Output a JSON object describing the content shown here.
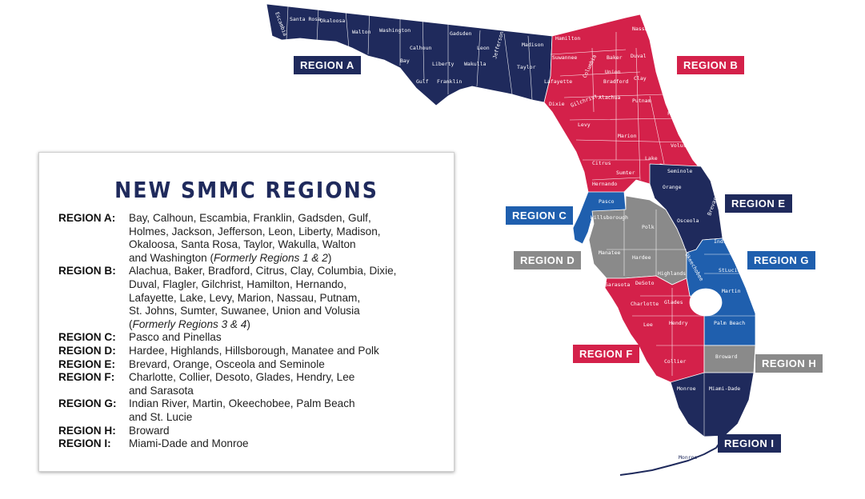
{
  "legend": {
    "title": "NEW SMMC REGIONS",
    "rows": [
      {
        "label": "REGION A:",
        "lines": [
          "Bay, Calhoun, Escambia, Franklin, Gadsden, Gulf,",
          "Holmes, Jackson, Jefferson, Leon, Liberty, Madison,",
          "Okaloosa, Santa Rosa, Taylor, Wakulla, Walton",
          "and Washington (Formerly Regions 1 & 2)"
        ]
      },
      {
        "label": "REGION B:",
        "lines": [
          "Alachua, Baker, Bradford, Citrus, Clay, Columbia, Dixie,",
          "Duval, Flagler, Gilchrist, Hamilton, Hernando,",
          "Lafayette, Lake, Levy, Marion, Nassau, Putnam,",
          "St. Johns, Sumter, Suwanee, Union and Volusia",
          "(Formerly Regions 3 & 4)"
        ]
      },
      {
        "label": "REGION C:",
        "lines": [
          "Pasco and Pinellas"
        ]
      },
      {
        "label": "REGION D:",
        "lines": [
          "Hardee, Highlands, Hillsborough, Manatee and Polk"
        ]
      },
      {
        "label": "REGION E:",
        "lines": [
          "Brevard, Orange, Osceola and Seminole"
        ]
      },
      {
        "label": "REGION F:",
        "lines": [
          "Charlotte, Collier, Desoto, Glades, Hendry, Lee",
          "and Sarasota"
        ]
      },
      {
        "label": "REGION G:",
        "lines": [
          "Indian River, Martin, Okeechobee, Palm Beach",
          "and St. Lucie"
        ]
      },
      {
        "label": "REGION H:",
        "lines": [
          "Broward"
        ]
      },
      {
        "label": "REGION I:",
        "lines": [
          "Miami-Dade and Monroe"
        ]
      }
    ]
  },
  "colors": {
    "region_a": "#1f2a5c",
    "region_b": "#d4214a",
    "region_c": "#1f5fae",
    "region_d": "#8a8a8a",
    "region_e": "#1f2a5c",
    "region_f": "#d4214a",
    "region_g": "#1f5fae",
    "region_h": "#8a8a8a",
    "region_i": "#1f2a5c"
  },
  "tags": {
    "a": "REGION A",
    "b": "REGION B",
    "c": "REGION C",
    "d": "REGION D",
    "e": "REGION E",
    "f": "REGION F",
    "g": "REGION G",
    "h": "REGION H",
    "i": "REGION I"
  },
  "counties": {
    "escambia": "Escambia",
    "santa_rosa": "Santa Rosa",
    "okaloosa": "Okaloosa",
    "walton": "Walton",
    "holmes": "Holmes",
    "washington": "Washington",
    "jackson": "Jackson",
    "bay": "Bay",
    "calhoun": "Calhoun",
    "gulf": "Gulf",
    "liberty": "Liberty",
    "gadsden": "Gadsden",
    "leon": "Leon",
    "wakulla": "Wakulla",
    "franklin": "Franklin",
    "jefferson": "Jefferson",
    "madison": "Madison",
    "taylor": "Taylor",
    "hamilton": "Hamilton",
    "suwannee": "Suwannee",
    "columbia": "Columbia",
    "baker": "Baker",
    "nassau": "Nassau",
    "duval": "Duval",
    "union": "Union",
    "bradford": "Bradford",
    "clay": "Clay",
    "st_johns": "St.Johns",
    "lafayette": "Lafayette",
    "gilchrist": "Gilchrist",
    "alachua": "Alachua",
    "putnam": "Putnam",
    "flagler": "Flagler",
    "dixie": "Dixie",
    "levy": "Levy",
    "marion": "Marion",
    "volusia": "Volusia",
    "citrus": "Citrus",
    "sumter": "Sumter",
    "lake": "Lake",
    "hernando": "Hernando",
    "seminole": "Seminole",
    "orange": "Orange",
    "osceola": "Osceola",
    "brevard": "Brevard",
    "pasco": "Pasco",
    "hillsborough": "Hillsborough",
    "polk": "Polk",
    "manatee": "Manatee",
    "hardee": "Hardee",
    "highlands": "Highlands",
    "indian_river": "Indian River",
    "st_lucie": "StLucie",
    "okeechobee": "Okeechobee",
    "martin": "Martin",
    "palm_beach": "Palm Beach",
    "sarasota": "Sarasota",
    "desoto": "DeSoto",
    "charlotte": "Charlotte",
    "glades": "Glades",
    "lee": "Lee",
    "hendry": "Hendry",
    "collier": "Collier",
    "broward": "Broward",
    "miami_dade": "Miami-Dade",
    "monroe": "Monroe",
    "monroe_keys": "Monroe"
  }
}
